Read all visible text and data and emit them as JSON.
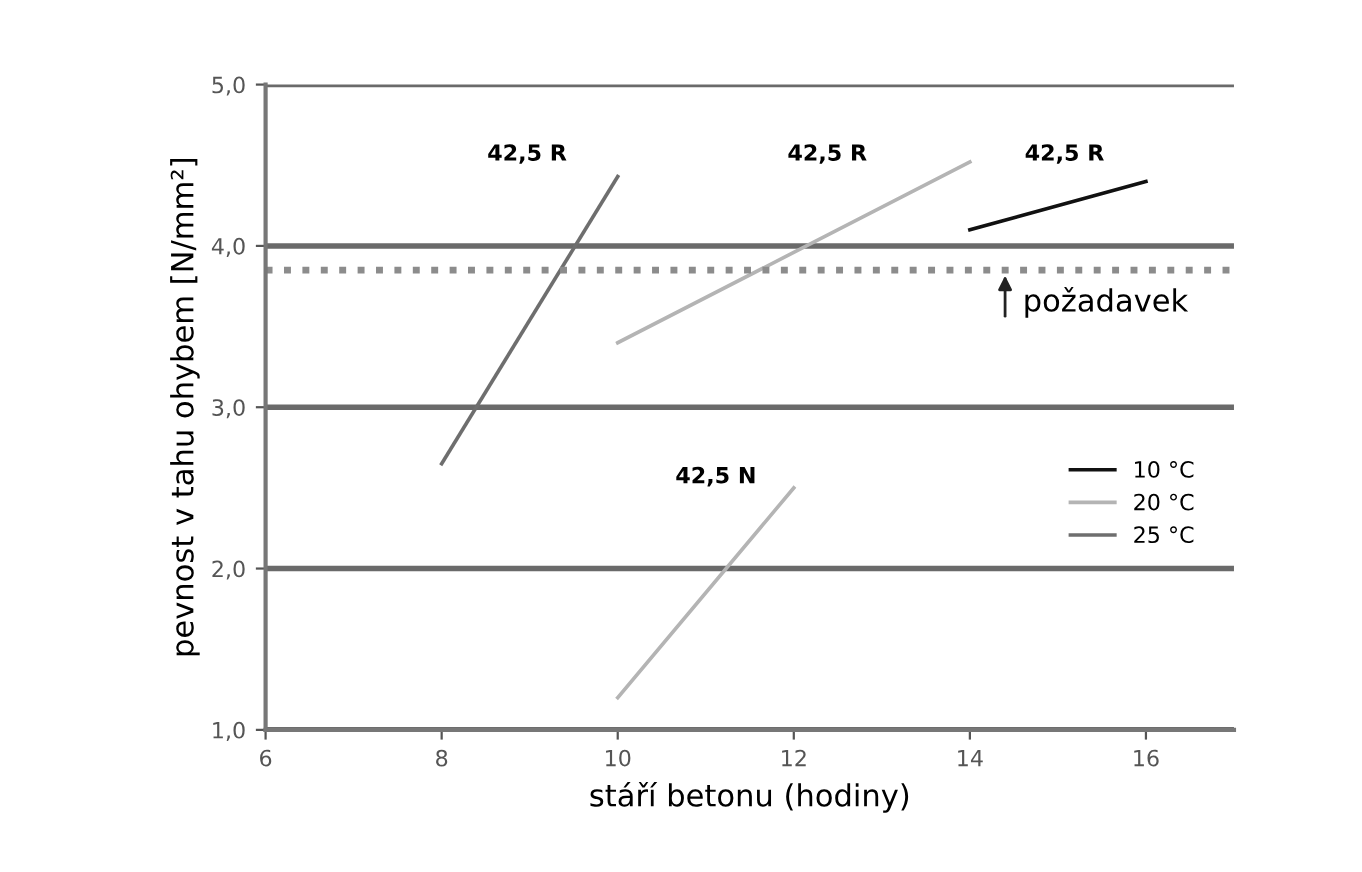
{
  "chart_data": {
    "type": "line",
    "xlabel": "stáří betonu (hodiny)",
    "ylabel": "pevnost v tahu ohybem [N/mm²]",
    "series": [
      {
        "name": "10 °C",
        "color": "#111111",
        "x": [
          14,
          16
        ],
        "values": [
          4.1,
          4.4
        ]
      },
      {
        "name": "20 °C",
        "color": "#b4b4b4",
        "x": [
          10,
          14
        ],
        "values": [
          3.4,
          4.52
        ]
      },
      {
        "color": "#b4b4b4",
        "x": [
          10,
          12
        ],
        "values": [
          1.2,
          2.5
        ]
      },
      {
        "name": "25 °C",
        "color": "#6e6e6e",
        "x": [
          8,
          10
        ],
        "values": [
          2.65,
          4.43
        ]
      }
    ],
    "xlim": [
      6,
      17
    ],
    "xticks": [
      6,
      8,
      10,
      12,
      14,
      16
    ],
    "ylim": [
      1,
      5
    ],
    "yticks": [
      {
        "value": 1,
        "label": "1,0"
      },
      {
        "value": 2,
        "label": "2,0"
      },
      {
        "value": 3,
        "label": "3,0"
      },
      {
        "value": 4,
        "label": "4,0"
      },
      {
        "value": 5,
        "label": "5,0"
      }
    ],
    "ref_lines": [
      {
        "axis": "y",
        "value": 3.85,
        "color": "#8c8c8c",
        "line_style": "dotted"
      }
    ],
    "annotations": [
      "42,5 R",
      "42,5 R",
      "42,5 R",
      "42,5 N",
      {
        "text": "požadavek",
        "x": 14.4,
        "y": 3.85
      }
    ],
    "grid": "y",
    "legend": "right",
    "marker": "none",
    "line_style": "solid"
  }
}
